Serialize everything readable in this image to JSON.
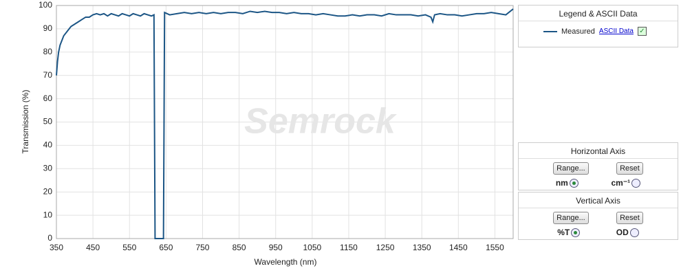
{
  "chart_data": {
    "type": "line",
    "xlabel": "Wavelength (nm)",
    "ylabel": "Transmission (%)",
    "watermark": "Semrock",
    "xlim": [
      350,
      1600
    ],
    "xticks": [
      350,
      450,
      550,
      650,
      750,
      850,
      950,
      1050,
      1150,
      1250,
      1350,
      1450,
      1550
    ],
    "ylim": [
      0,
      100
    ],
    "yticks": [
      0,
      10,
      20,
      30,
      40,
      50,
      60,
      70,
      80,
      90,
      100
    ],
    "grid": true,
    "x": [
      350,
      353,
      356,
      360,
      365,
      370,
      380,
      390,
      400,
      410,
      420,
      430,
      440,
      450,
      460,
      470,
      480,
      490,
      500,
      510,
      520,
      530,
      540,
      550,
      560,
      570,
      580,
      590,
      600,
      610,
      617,
      620,
      643,
      646,
      660,
      680,
      700,
      720,
      740,
      760,
      780,
      800,
      820,
      840,
      860,
      880,
      900,
      920,
      940,
      960,
      980,
      1000,
      1020,
      1040,
      1060,
      1080,
      1100,
      1120,
      1140,
      1160,
      1180,
      1200,
      1220,
      1240,
      1260,
      1280,
      1300,
      1320,
      1340,
      1360,
      1375,
      1380,
      1385,
      1400,
      1420,
      1440,
      1460,
      1480,
      1500,
      1520,
      1540,
      1560,
      1580,
      1600
    ],
    "series": [
      {
        "name": "Measured",
        "color": "#1b5585",
        "values": [
          70,
          76,
          80,
          83,
          85,
          87,
          89,
          91,
          92,
          93,
          94,
          95,
          95,
          96,
          96.5,
          96,
          96.5,
          95.5,
          96.5,
          96,
          95.5,
          96.5,
          96,
          95.5,
          96.5,
          96,
          95.5,
          96.5,
          96,
          95.5,
          96,
          0,
          0,
          97,
          96,
          96.5,
          97,
          96.5,
          97,
          96.5,
          97,
          96.5,
          97,
          97,
          96.5,
          97.5,
          97,
          97.5,
          97,
          97,
          96.5,
          97,
          96.5,
          96.5,
          96,
          96.5,
          96,
          95.5,
          95.5,
          96,
          95.5,
          96,
          96,
          95.5,
          96.5,
          96,
          96,
          96,
          95.5,
          96,
          95,
          93,
          96,
          96.5,
          96,
          96,
          95.5,
          96,
          96.5,
          96.5,
          97,
          96.5,
          96,
          98.5
        ]
      }
    ]
  },
  "legend_panel": {
    "title": "Legend & ASCII Data",
    "link": "ASCII Data"
  },
  "horizontal_panel": {
    "title": "Horizontal Axis",
    "range": "Range...",
    "reset": "Reset",
    "option1": "nm",
    "option2": "cm⁻¹"
  },
  "vertical_panel": {
    "title": "Vertical  Axis",
    "range": "Range...",
    "reset": "Reset",
    "option1": "%T",
    "option2": "OD"
  }
}
